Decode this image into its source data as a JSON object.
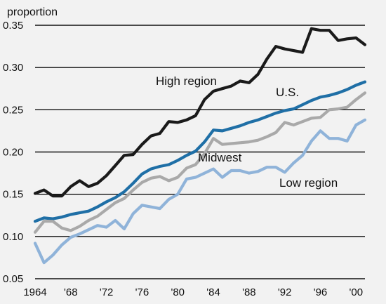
{
  "chart_data": {
    "type": "line",
    "title": "",
    "ylabel": "proportion",
    "xlabel": "",
    "ylim": [
      0.05,
      0.35
    ],
    "xlim": [
      1964,
      2001
    ],
    "grid": "horizontal",
    "y_ticks": [
      "0.05",
      "0.10",
      "0.15",
      "0.20",
      "0.25",
      "0.30",
      "0.35"
    ],
    "x_ticks": [
      "1964",
      "'68",
      "'72",
      "'76",
      "'80",
      "'84",
      "'88",
      "'92",
      "'96",
      "'00"
    ],
    "x": [
      1964,
      1965,
      1966,
      1967,
      1968,
      1969,
      1970,
      1971,
      1972,
      1973,
      1974,
      1975,
      1976,
      1977,
      1978,
      1979,
      1980,
      1981,
      1982,
      1983,
      1984,
      1985,
      1986,
      1987,
      1988,
      1989,
      1990,
      1991,
      1992,
      1993,
      1994,
      1995,
      1996,
      1997,
      1998,
      1999,
      2000,
      2001
    ],
    "series": [
      {
        "name": "High region",
        "color": "#1a1a1a",
        "values": [
          0.151,
          0.155,
          0.148,
          0.148,
          0.159,
          0.166,
          0.159,
          0.163,
          0.172,
          0.184,
          0.196,
          0.197,
          0.209,
          0.219,
          0.222,
          0.236,
          0.235,
          0.238,
          0.243,
          0.262,
          0.272,
          0.275,
          0.278,
          0.284,
          0.282,
          0.292,
          0.31,
          0.325,
          0.322,
          0.32,
          0.318,
          0.346,
          0.344,
          0.344,
          0.332,
          0.334,
          0.335,
          0.327
        ]
      },
      {
        "name": "U.S.",
        "color": "#1f6fa6",
        "values": [
          0.118,
          0.122,
          0.121,
          0.123,
          0.126,
          0.128,
          0.13,
          0.135,
          0.141,
          0.146,
          0.153,
          0.163,
          0.174,
          0.18,
          0.183,
          0.185,
          0.19,
          0.196,
          0.201,
          0.212,
          0.226,
          0.225,
          0.228,
          0.231,
          0.235,
          0.238,
          0.242,
          0.246,
          0.249,
          0.251,
          0.256,
          0.261,
          0.265,
          0.267,
          0.27,
          0.274,
          0.279,
          0.283
        ]
      },
      {
        "name": "Midwest",
        "color": "#a9a9a9",
        "values": [
          0.105,
          0.118,
          0.118,
          0.11,
          0.107,
          0.112,
          0.119,
          0.124,
          0.132,
          0.14,
          0.145,
          0.155,
          0.164,
          0.169,
          0.171,
          0.166,
          0.17,
          0.181,
          0.185,
          0.198,
          0.216,
          0.209,
          0.21,
          0.211,
          0.212,
          0.214,
          0.218,
          0.223,
          0.235,
          0.232,
          0.236,
          0.24,
          0.241,
          0.25,
          0.251,
          0.253,
          0.262,
          0.27
        ]
      },
      {
        "name": "Low region",
        "color": "#8fb3d9",
        "values": [
          0.092,
          0.069,
          0.078,
          0.09,
          0.099,
          0.103,
          0.108,
          0.113,
          0.111,
          0.119,
          0.109,
          0.127,
          0.137,
          0.135,
          0.133,
          0.144,
          0.15,
          0.168,
          0.17,
          0.175,
          0.18,
          0.17,
          0.178,
          0.178,
          0.175,
          0.177,
          0.182,
          0.182,
          0.176,
          0.187,
          0.196,
          0.213,
          0.225,
          0.216,
          0.216,
          0.213,
          0.232,
          0.238
        ]
      }
    ]
  }
}
